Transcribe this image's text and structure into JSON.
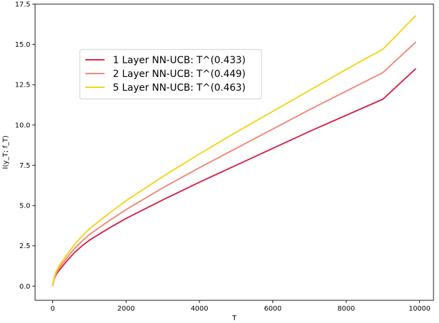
{
  "chart_data": {
    "type": "line",
    "xlabel": "T",
    "ylabel": "I(y_T; f_T)",
    "xlim": [
      -480,
      10380
    ],
    "ylim": [
      -0.88,
      17.5
    ],
    "xticks": [
      0,
      2000,
      4000,
      6000,
      8000,
      10000
    ],
    "yticks": [
      0.0,
      2.5,
      5.0,
      7.5,
      10.0,
      12.5,
      15.0,
      17.5
    ],
    "x_tick_labels": [
      "0",
      "2000",
      "4000",
      "6000",
      "8000",
      "10000"
    ],
    "y_tick_labels": [
      "0.0",
      "2.5",
      "5.0",
      "7.5",
      "10.0",
      "12.5",
      "15.0",
      "17.5"
    ],
    "legend_position": "upper-left",
    "grid": false,
    "x": [
      0,
      10,
      50,
      100,
      200,
      400,
      600,
      800,
      1000,
      1500,
      2000,
      3000,
      4000,
      5000,
      6000,
      7000,
      8000,
      9000,
      9900
    ],
    "series": [
      {
        "name": "1 Layer NN-UCB: T^(0.433)",
        "color": "#d6264b",
        "values": [
          0.0,
          0.18,
          0.5,
          0.75,
          1.05,
          1.6,
          2.1,
          2.5,
          2.85,
          3.55,
          4.2,
          5.35,
          6.45,
          7.5,
          8.55,
          9.6,
          10.6,
          11.6,
          13.5
        ]
      },
      {
        "name": "2 Layer NN-UCB: T^(0.449)",
        "color": "#f28a7a",
        "values": [
          0.0,
          0.2,
          0.55,
          0.85,
          1.2,
          1.8,
          2.35,
          2.8,
          3.2,
          4.0,
          4.75,
          6.1,
          7.35,
          8.55,
          9.75,
          10.95,
          12.1,
          13.25,
          15.15
        ]
      },
      {
        "name": "5 Layer NN-UCB: T^(0.463)",
        "color": "#f6d41c",
        "values": [
          0.0,
          0.22,
          0.6,
          0.95,
          1.35,
          2.0,
          2.6,
          3.1,
          3.55,
          4.45,
          5.3,
          6.8,
          8.2,
          9.55,
          10.85,
          12.15,
          13.45,
          14.7,
          16.8
        ]
      }
    ]
  }
}
